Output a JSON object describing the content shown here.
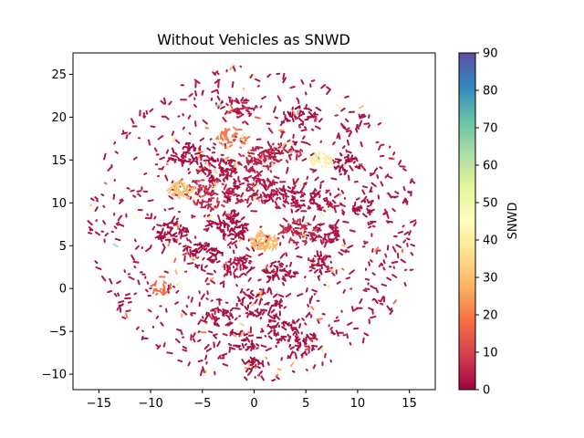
{
  "chart_data": {
    "type": "scatter",
    "title": "Without Vehicles as SNWD",
    "xlabel": "",
    "ylabel": "",
    "xlim": [
      -17.5,
      17.5
    ],
    "ylim": [
      -11.8,
      27.5
    ],
    "xticks": [
      -15,
      -10,
      -5,
      0,
      5,
      10,
      15
    ],
    "yticks": [
      -10,
      -5,
      0,
      5,
      10,
      15,
      20,
      25
    ],
    "grid": false,
    "colorbar": {
      "label": "SNWD",
      "range": [
        0,
        90
      ],
      "ticks": [
        0,
        10,
        20,
        30,
        40,
        50,
        60,
        70,
        80,
        90
      ],
      "colormap": [
        "#9e0142",
        "#d53e4f",
        "#f46d43",
        "#fdae61",
        "#fee08b",
        "#ffffbf",
        "#e6f598",
        "#abdda4",
        "#66c2a5",
        "#3288bd",
        "#5e4fa2"
      ]
    },
    "clusters": [
      {
        "x": -6.5,
        "y": 15.5,
        "r": 1.2,
        "n": 40,
        "v": 2
      },
      {
        "x": -3.5,
        "y": 14.0,
        "r": 1.5,
        "n": 60,
        "v": 3
      },
      {
        "x": -2.0,
        "y": 17.5,
        "r": 1.2,
        "n": 40,
        "v": 20
      },
      {
        "x": 0.5,
        "y": 15.0,
        "r": 1.6,
        "n": 60,
        "v": 5
      },
      {
        "x": 3.0,
        "y": 16.0,
        "r": 1.3,
        "n": 40,
        "v": 4
      },
      {
        "x": -4.5,
        "y": 11.0,
        "r": 1.8,
        "n": 70,
        "v": 6
      },
      {
        "x": -7.0,
        "y": 11.5,
        "r": 1.0,
        "n": 40,
        "v": 30
      },
      {
        "x": 0.0,
        "y": 11.5,
        "r": 1.8,
        "n": 80,
        "v": 4
      },
      {
        "x": 3.5,
        "y": 10.5,
        "r": 1.5,
        "n": 50,
        "v": 3
      },
      {
        "x": 6.5,
        "y": 15.0,
        "r": 0.8,
        "n": 30,
        "v": 40
      },
      {
        "x": 7.0,
        "y": 10.5,
        "r": 1.5,
        "n": 40,
        "v": 3
      },
      {
        "x": 9.0,
        "y": 14.5,
        "r": 1.0,
        "n": 30,
        "v": 2
      },
      {
        "x": -2.5,
        "y": 7.5,
        "r": 1.5,
        "n": 60,
        "v": 2
      },
      {
        "x": 1.0,
        "y": 5.5,
        "r": 1.0,
        "n": 60,
        "v": 28
      },
      {
        "x": 4.0,
        "y": 6.5,
        "r": 1.5,
        "n": 50,
        "v": 6
      },
      {
        "x": 7.0,
        "y": 6.5,
        "r": 1.2,
        "n": 40,
        "v": 3
      },
      {
        "x": -5.0,
        "y": 4.0,
        "r": 1.5,
        "n": 50,
        "v": 2
      },
      {
        "x": -8.0,
        "y": 6.5,
        "r": 1.2,
        "n": 40,
        "v": 2
      },
      {
        "x": -1.5,
        "y": 2.5,
        "r": 1.2,
        "n": 40,
        "v": 3
      },
      {
        "x": 2.5,
        "y": 2.0,
        "r": 1.2,
        "n": 40,
        "v": 2
      },
      {
        "x": 6.5,
        "y": 3.0,
        "r": 1.2,
        "n": 30,
        "v": 2
      },
      {
        "x": 0.5,
        "y": -1.5,
        "r": 1.8,
        "n": 50,
        "v": 2
      },
      {
        "x": -3.5,
        "y": -3.5,
        "r": 1.2,
        "n": 30,
        "v": 2
      },
      {
        "x": 2.5,
        "y": -4.5,
        "r": 1.6,
        "n": 40,
        "v": 2
      },
      {
        "x": -1.0,
        "y": -6.0,
        "r": 1.2,
        "n": 30,
        "v": 2
      },
      {
        "x": 5.0,
        "y": -6.5,
        "r": 1.2,
        "n": 30,
        "v": 2
      },
      {
        "x": 0.0,
        "y": -9.0,
        "r": 0.8,
        "n": 20,
        "v": 2
      },
      {
        "x": -1.5,
        "y": 21.0,
        "r": 1.2,
        "n": 30,
        "v": 3
      },
      {
        "x": 4.5,
        "y": 20.0,
        "r": 1.2,
        "n": 30,
        "v": 2
      },
      {
        "x": -9.0,
        "y": 0.0,
        "r": 0.8,
        "n": 20,
        "v": 18
      },
      {
        "x": 10.5,
        "y": 9.5,
        "r": 1.0,
        "n": 25,
        "v": 2
      }
    ],
    "scatter_cloud": {
      "center": [
        0,
        7.5
      ],
      "radius_x": 16,
      "radius_y": 18.5,
      "n": 900,
      "v": 3
    }
  }
}
